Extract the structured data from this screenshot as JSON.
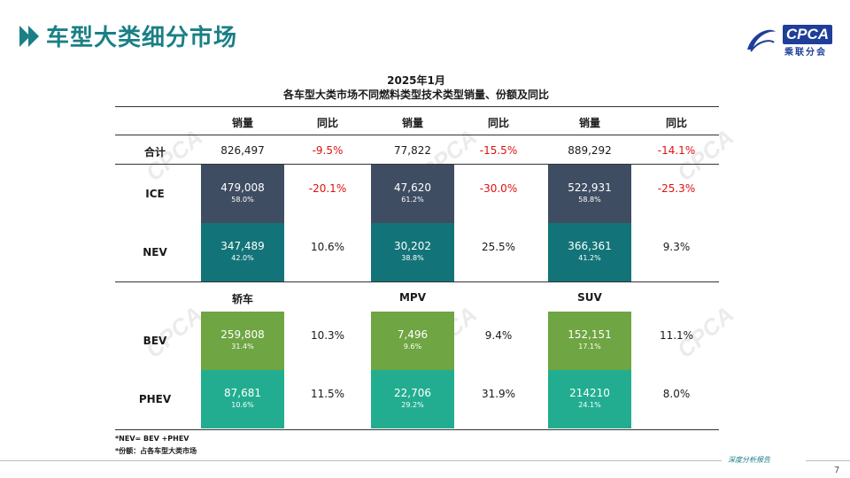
{
  "header": {
    "title": "车型大类细分市场"
  },
  "logo": {
    "brand": "CPCA",
    "cn": "乘联分会"
  },
  "table": {
    "title_line1": "2025年1月",
    "title_line2": "各车型大类市场不同燃料类型技术类型销量、份额及同比",
    "col_headers": [
      "销量",
      "同比",
      "销量",
      "同比",
      "销量",
      "同比"
    ],
    "total": {
      "label": "合计",
      "values": [
        "826,497",
        "-9.5%",
        "77,822",
        "-15.5%",
        "889,292",
        "-14.1%"
      ]
    },
    "ice": {
      "label": "ICE",
      "blocks": [
        {
          "value": "479,008",
          "pct": "58.0%"
        },
        {
          "value": "47,620",
          "pct": "61.2%"
        },
        {
          "value": "522,931",
          "pct": "58.8%"
        }
      ],
      "yoy": [
        "-20.1%",
        "-30.0%",
        "-25.3%"
      ]
    },
    "nev": {
      "label": "NEV",
      "blocks": [
        {
          "value": "347,489",
          "pct": "42.0%"
        },
        {
          "value": "30,202",
          "pct": "38.8%"
        },
        {
          "value": "366,361",
          "pct": "41.2%"
        }
      ],
      "yoy": [
        "10.6%",
        "25.5%",
        "9.3%"
      ]
    },
    "segments": [
      "轿车",
      "MPV",
      "SUV"
    ],
    "bev": {
      "label": "BEV",
      "blocks": [
        {
          "value": "259,808",
          "pct": "31.4%"
        },
        {
          "value": "7,496",
          "pct": "9.6%"
        },
        {
          "value": "152,151",
          "pct": "17.1%"
        }
      ],
      "yoy": [
        "10.3%",
        "9.4%",
        "11.1%"
      ]
    },
    "phev": {
      "label": "PHEV",
      "blocks": [
        {
          "value": "87,681",
          "pct": "10.6%"
        },
        {
          "value": "22,706",
          "pct": "29.2%"
        },
        {
          "value": "214210",
          "pct": "24.1%"
        }
      ],
      "yoy": [
        "11.5%",
        "31.9%",
        "8.0%"
      ]
    }
  },
  "notes": [
    "*NEV= BEV +PHEV",
    "*份额：占各车型大类市场"
  ],
  "footer": {
    "tag": "深度分析报告",
    "page": "7"
  },
  "colors": {
    "accent": "#1a7f86",
    "ice": "#3f4d63",
    "nev": "#127478",
    "bev": "#6fa542",
    "phev": "#22ad90",
    "negative": "#e01010"
  }
}
